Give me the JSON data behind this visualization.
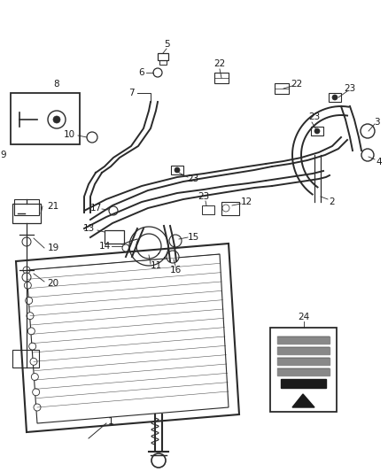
{
  "bg_color": "#ffffff",
  "line_color": "#2a2a2a",
  "label_color": "#1a1a1a",
  "lw_main": 1.4,
  "lw_thin": 0.9,
  "lw_hose": 2.2,
  "fs": 7.5,
  "fig_w": 4.38,
  "fig_h": 5.33,
  "dpi": 100,
  "xlim": [
    0,
    438
  ],
  "ylim": [
    0,
    533
  ]
}
